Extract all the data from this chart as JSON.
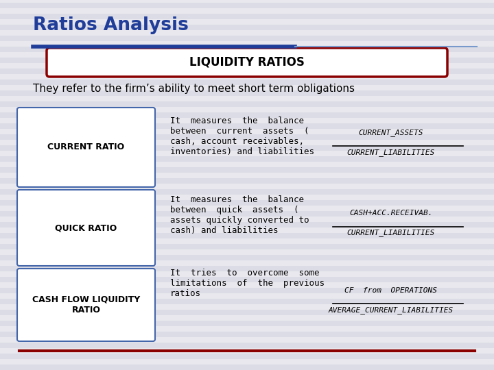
{
  "title": "Ratios Analysis",
  "title_color": "#1f3d99",
  "background_color": "#e8e8ee",
  "stripe_color": "#dcdce6",
  "liquidity_box_text": "LIQUIDITY RATIOS",
  "liquidity_box_border": "#8b0000",
  "subtitle": "They refer to the firm’s ability to meet short term obligations",
  "subtitle_color": "#000000",
  "header_line_color_left": "#1f3d99",
  "header_line_color_right": "#7799cc",
  "footer_line_color": "#8b0000",
  "rows": [
    {
      "label": "CURRENT RATIO",
      "description": "It  measures  the  balance\nbetween  current  assets  (\ncash, account receivables,\ninventories) and liabilities",
      "formula_num": "CURRENT_ASSETS",
      "formula_den": "CURRENT_LIABILITIES"
    },
    {
      "label": "QUICK RATIO",
      "description": "It  measures  the  balance\nbetween  quick  assets  (\nassets quickly converted to\ncash) and liabilities",
      "formula_num": "CASH+ACC.RECEIVAB.",
      "formula_den": "CURRENT_LIABILITIES"
    },
    {
      "label": "CASH FLOW LIQUIDITY\nRATIO",
      "description": "It  tries  to  overcome  some\nlimitations  of  the  previous\nratios",
      "formula_num": "CF  from  OPERATIONS",
      "formula_den": "AVERAGE_CURRENT_LIABILITIES"
    }
  ],
  "box_border_color": "#4466aa",
  "box_fill_color": "#ffffff",
  "label_color": "#000000",
  "desc_color": "#000000",
  "formula_color": "#000000"
}
